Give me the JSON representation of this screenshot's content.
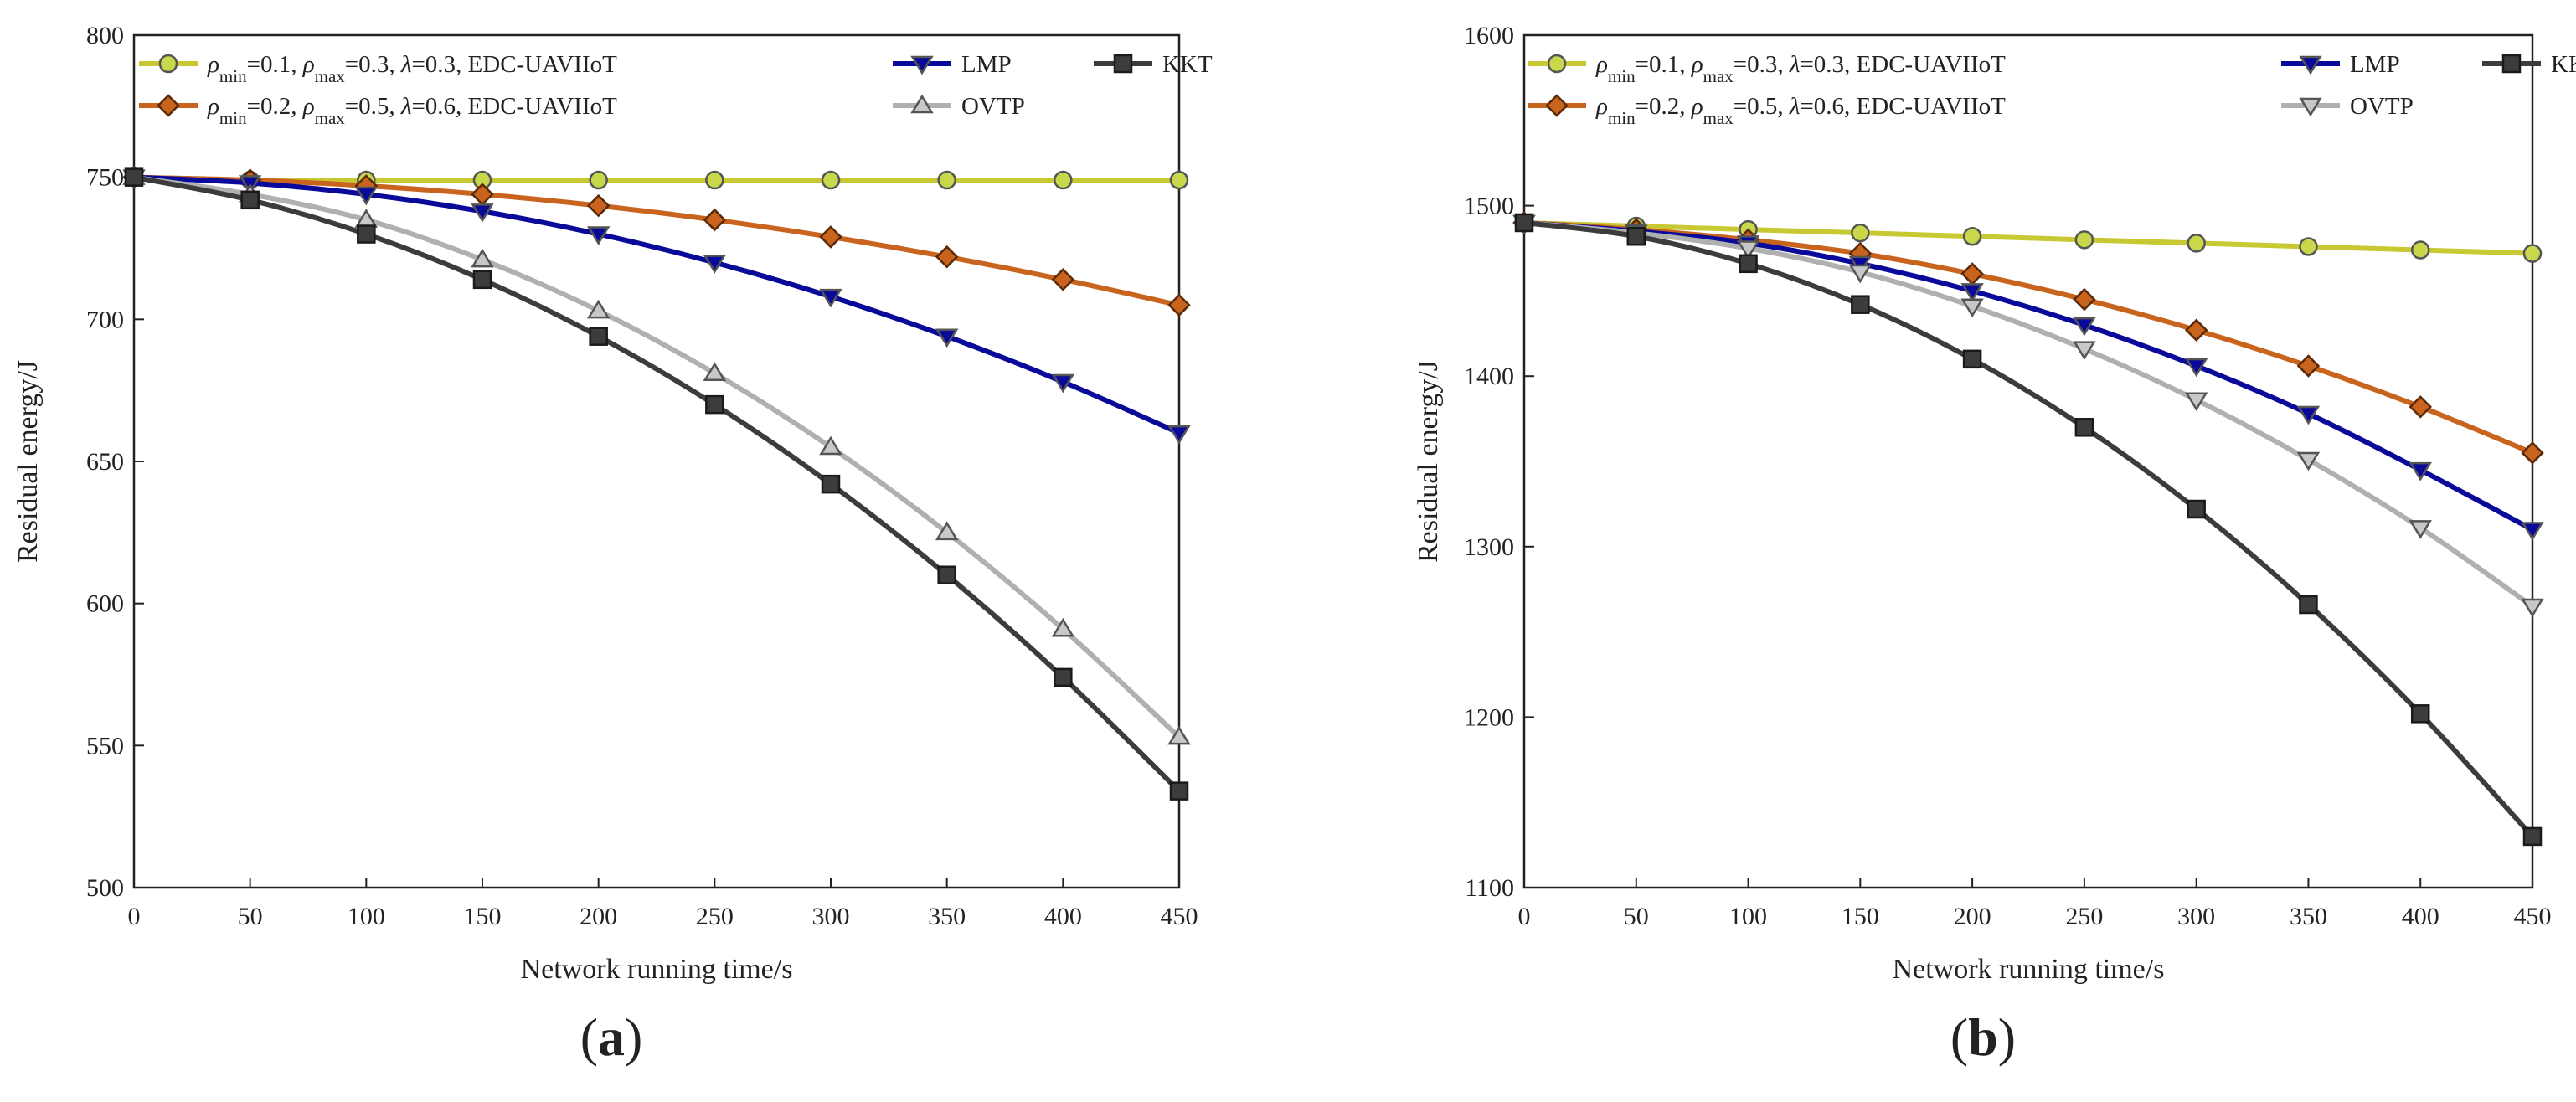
{
  "chart_data": [
    {
      "type": "line",
      "panel_label": "(a)",
      "panel_letter": "a",
      "xlabel": "Network running time/s",
      "ylabel": "Residual energy/J",
      "xlim": [
        0,
        450
      ],
      "ylim": [
        500,
        800
      ],
      "x_ticks": [
        0,
        50,
        100,
        150,
        200,
        250,
        300,
        350,
        400,
        450
      ],
      "y_ticks": [
        500,
        550,
        600,
        650,
        700,
        750,
        800
      ],
      "x": [
        0,
        50,
        100,
        150,
        200,
        250,
        300,
        350,
        400,
        450
      ],
      "series": [
        {
          "key": "edc1",
          "name": "ρmin=0.1, ρmax=0.3, λ=0.3, EDC-UAVIIoT",
          "label_min": "0.1",
          "label_max": "0.3",
          "label_lambda": "0.3",
          "label_method": "EDC-UAVIIoT",
          "color": "#c8c832",
          "marker_fill": "#c8d84a",
          "marker": "circle",
          "values": [
            750,
            749,
            749,
            749,
            749,
            749,
            749,
            749,
            749,
            749
          ]
        },
        {
          "key": "edc2",
          "name": "ρmin=0.2, ρmax=0.5, λ=0.6, EDC-UAVIIoT",
          "label_min": "0.2",
          "label_max": "0.5",
          "label_lambda": "0.6",
          "label_method": "EDC-UAVIIoT",
          "color": "#c8641e",
          "marker_fill": "#c8641e",
          "marker": "diamond",
          "values": [
            750,
            749,
            747,
            744,
            740,
            735,
            729,
            722,
            714,
            705
          ]
        },
        {
          "key": "lmp",
          "name": "LMP",
          "color": "#0a0a9a",
          "marker_fill": "#0a0a9a",
          "marker": "triangle-down",
          "values": [
            750,
            748,
            744,
            738,
            730,
            720,
            708,
            694,
            678,
            660
          ]
        },
        {
          "key": "ovtp",
          "name": "OVTP",
          "color": "#b0b0b0",
          "marker_fill": "#c8c8c8",
          "marker": "triangle-up",
          "values": [
            750,
            744,
            735,
            721,
            703,
            681,
            655,
            625,
            591,
            553
          ]
        },
        {
          "key": "kkt",
          "name": "KKT",
          "color": "#3c3c3c",
          "marker_fill": "#3c3c3c",
          "marker": "square",
          "values": [
            750,
            742,
            730,
            714,
            694,
            670,
            642,
            610,
            574,
            534
          ]
        }
      ]
    },
    {
      "type": "line",
      "panel_label": "(b)",
      "panel_letter": "b",
      "xlabel": "Network running time/s",
      "ylabel": "Residual energy/J",
      "xlim": [
        0,
        450
      ],
      "ylim": [
        1100,
        1600
      ],
      "x_ticks": [
        0,
        50,
        100,
        150,
        200,
        250,
        300,
        350,
        400,
        450
      ],
      "y_ticks": [
        1100,
        1200,
        1300,
        1400,
        1500,
        1600
      ],
      "x": [
        0,
        50,
        100,
        150,
        200,
        250,
        300,
        350,
        400,
        450
      ],
      "series": [
        {
          "key": "edc1",
          "name": "ρmin=0.1, ρmax=0.3, λ=0.3, EDC-UAVIIoT",
          "label_min": "0.1",
          "label_max": "0.3",
          "label_lambda": "0.3",
          "label_method": "EDC-UAVIIoT",
          "color": "#c8c832",
          "marker_fill": "#c8d84a",
          "marker": "circle",
          "values": [
            1490,
            1488,
            1486,
            1484,
            1482,
            1480,
            1478,
            1476,
            1474,
            1472
          ]
        },
        {
          "key": "edc2",
          "name": "ρmin=0.2, ρmax=0.5, λ=0.6, EDC-UAVIIoT",
          "label_min": "0.2",
          "label_max": "0.5",
          "label_lambda": "0.6",
          "label_method": "EDC-UAVIIoT",
          "color": "#c8641e",
          "marker_fill": "#c8641e",
          "marker": "diamond",
          "values": [
            1490,
            1486,
            1480,
            1472,
            1460,
            1445,
            1427,
            1406,
            1382,
            1355
          ]
        },
        {
          "key": "lmp",
          "name": "LMP",
          "color": "#0a0a9a",
          "marker_fill": "#0a0a9a",
          "marker": "triangle-down",
          "values": [
            1490,
            1485,
            1478,
            1466,
            1450,
            1430,
            1406,
            1378,
            1345,
            1310
          ]
        },
        {
          "key": "ovtp",
          "name": "OVTP",
          "color": "#b0b0b0",
          "marker_fill": "#c8c8c8",
          "marker": "triangle-down",
          "values": [
            1490,
            1484,
            1475,
            1461,
            1441,
            1416,
            1386,
            1351,
            1311,
            1265
          ]
        },
        {
          "key": "kkt",
          "name": "KKT",
          "color": "#3c3c3c",
          "marker_fill": "#3c3c3c",
          "marker": "square",
          "values": [
            1490,
            1482,
            1466,
            1442,
            1410,
            1370,
            1322,
            1266,
            1202,
            1130
          ]
        }
      ]
    }
  ]
}
